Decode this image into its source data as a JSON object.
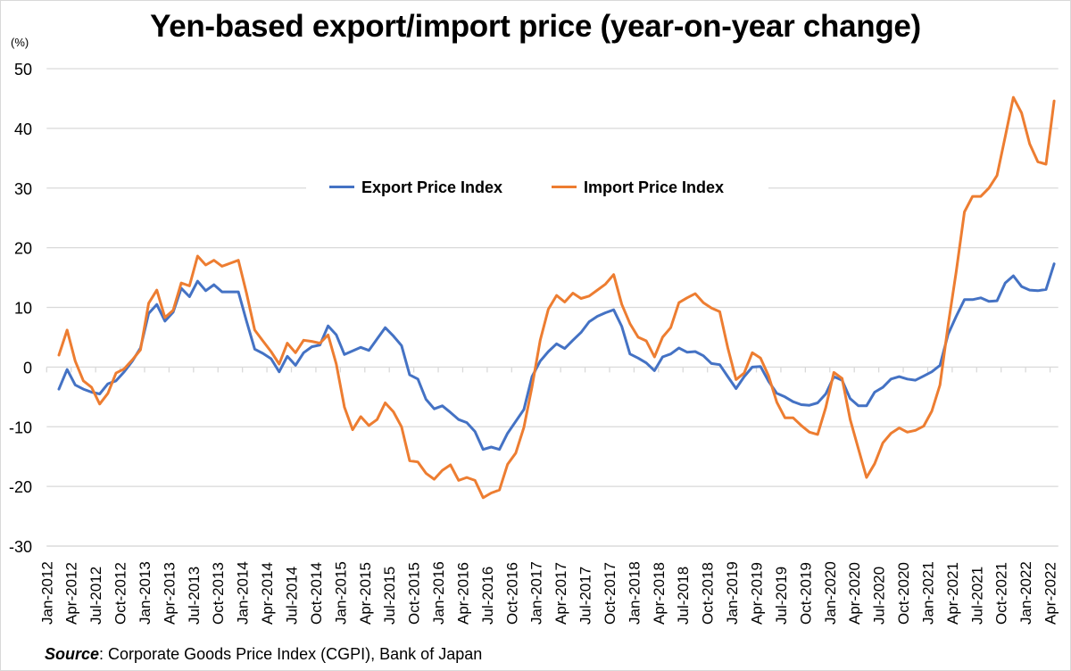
{
  "chart_data": {
    "type": "line",
    "title": "Yen-based export/import price (year-on-year change)",
    "ylabel": "(%)",
    "xlabel": "",
    "ylim": [
      -30,
      50
    ],
    "yticks": [
      50,
      40,
      30,
      20,
      10,
      0,
      -10,
      -20,
      -30
    ],
    "grid": true,
    "legend_position": "center-top",
    "x": [
      "Jan-2012",
      "Feb-2012",
      "Mar-2012",
      "Apr-2012",
      "May-2012",
      "Jun-2012",
      "Jul-2012",
      "Aug-2012",
      "Sep-2012",
      "Oct-2012",
      "Nov-2012",
      "Dec-2012",
      "Jan-2013",
      "Feb-2013",
      "Mar-2013",
      "Apr-2013",
      "May-2013",
      "Jun-2013",
      "Jul-2013",
      "Aug-2013",
      "Sep-2013",
      "Oct-2013",
      "Nov-2013",
      "Dec-2013",
      "Jan-2014",
      "Feb-2014",
      "Mar-2014",
      "Apr-2014",
      "May-2014",
      "Jun-2014",
      "Jul-2014",
      "Aug-2014",
      "Sep-2014",
      "Oct-2014",
      "Nov-2014",
      "Dec-2014",
      "Jan-2015",
      "Feb-2015",
      "Mar-2015",
      "Apr-2015",
      "May-2015",
      "Jun-2015",
      "Jul-2015",
      "Aug-2015",
      "Sep-2015",
      "Oct-2015",
      "Nov-2015",
      "Dec-2015",
      "Jan-2016",
      "Feb-2016",
      "Mar-2016",
      "Apr-2016",
      "May-2016",
      "Jun-2016",
      "Jul-2016",
      "Aug-2016",
      "Sep-2016",
      "Oct-2016",
      "Nov-2016",
      "Dec-2016",
      "Jan-2017",
      "Feb-2017",
      "Mar-2017",
      "Apr-2017",
      "May-2017",
      "Jun-2017",
      "Jul-2017",
      "Aug-2017",
      "Sep-2017",
      "Oct-2017",
      "Nov-2017",
      "Dec-2017",
      "Jan-2018",
      "Feb-2018",
      "Mar-2018",
      "Apr-2018",
      "May-2018",
      "Jun-2018",
      "Jul-2018",
      "Aug-2018",
      "Sep-2018",
      "Oct-2018",
      "Nov-2018",
      "Dec-2018",
      "Jan-2019",
      "Feb-2019",
      "Mar-2019",
      "Apr-2019",
      "May-2019",
      "Jun-2019",
      "Jul-2019",
      "Aug-2019",
      "Sep-2019",
      "Oct-2019",
      "Nov-2019",
      "Dec-2019",
      "Jan-2020",
      "Feb-2020",
      "Mar-2020",
      "Apr-2020",
      "May-2020",
      "Jun-2020",
      "Jul-2020",
      "Aug-2020",
      "Sep-2020",
      "Oct-2020",
      "Nov-2020",
      "Dec-2020",
      "Jan-2021",
      "Feb-2021",
      "Mar-2021",
      "Apr-2021",
      "May-2021",
      "Jun-2021",
      "Jul-2021",
      "Aug-2021",
      "Sep-2021",
      "Oct-2021",
      "Nov-2021",
      "Dec-2021",
      "Jan-2022",
      "Feb-2022",
      "Mar-2022",
      "Apr-2022"
    ],
    "xtick_labels": [
      "Jan-2012",
      "Apr-2012",
      "Jul-2012",
      "Oct-2012",
      "Jan-2013",
      "Apr-2013",
      "Jul-2013",
      "Oct-2013",
      "Jan-2014",
      "Apr-2014",
      "Jul-2014",
      "Oct-2014",
      "Jan-2015",
      "Apr-2015",
      "Jul-2015",
      "Oct-2015",
      "Jan-2016",
      "Apr-2016",
      "Jul-2016",
      "Oct-2016",
      "Jan-2017",
      "Apr-2017",
      "Jul-2017",
      "Oct-2017",
      "Jan-2018",
      "Apr-2018",
      "Jul-2018",
      "Oct-2018",
      "Jan-2019",
      "Apr-2019",
      "Jul-2019",
      "Oct-2019",
      "Jan-2020",
      "Apr-2020",
      "Jul-2020",
      "Oct-2020",
      "Jan-2021",
      "Apr-2021",
      "Jul-2021",
      "Oct-2021",
      "Jan-2022",
      "Apr-2022"
    ],
    "series": [
      {
        "name": "Export Price Index",
        "color": "#4472c4",
        "values": [
          null,
          -3.7,
          -0.4,
          -3.0,
          -3.7,
          -4.2,
          -4.5,
          -2.8,
          -2.3,
          -0.8,
          1.0,
          3.2,
          9.0,
          10.5,
          7.7,
          9.2,
          13.2,
          11.8,
          14.4,
          12.8,
          13.8,
          12.6,
          12.6,
          12.6,
          7.7,
          3.0,
          2.3,
          1.4,
          -0.8,
          1.8,
          0.3,
          2.4,
          3.4,
          3.7,
          6.9,
          5.4,
          2.1,
          2.7,
          3.3,
          2.8,
          4.7,
          6.6,
          5.2,
          3.6,
          -1.3,
          -2.0,
          -5.4,
          -7.0,
          -6.5,
          -7.6,
          -8.8,
          -9.3,
          -10.8,
          -13.8,
          -13.4,
          -13.8,
          -11.1,
          -9.1,
          -7.1,
          -1.6,
          1.0,
          2.6,
          3.9,
          3.1,
          4.5,
          5.8,
          7.6,
          8.5,
          9.1,
          9.6,
          6.8,
          2.2,
          1.5,
          0.7,
          -0.6,
          1.7,
          2.2,
          3.2,
          2.5,
          2.6,
          1.9,
          0.6,
          0.4,
          -1.6,
          -3.6,
          -1.6,
          0.0,
          0.1,
          -2.4,
          -4.4,
          -5.0,
          -5.8,
          -6.3,
          -6.4,
          -6.0,
          -4.5,
          -1.6,
          -2.2,
          -5.3,
          -6.5,
          -6.5,
          -4.2,
          -3.4,
          -2.0,
          -1.6,
          -2.0,
          -2.2,
          -1.5,
          -0.8,
          0.3,
          5.5,
          8.5,
          11.3,
          11.3,
          11.6,
          11.0,
          11.1,
          14.1,
          15.3,
          13.5,
          12.9,
          12.8,
          13.0,
          17.3
        ]
      },
      {
        "name": "Import Price Index",
        "color": "#ed7d31",
        "values": [
          null,
          2.0,
          6.2,
          1.0,
          -2.3,
          -3.4,
          -6.2,
          -4.4,
          -1.0,
          -0.3,
          1.2,
          2.9,
          10.7,
          12.9,
          8.3,
          9.5,
          14.1,
          13.6,
          18.6,
          17.1,
          17.9,
          16.9,
          17.4,
          17.9,
          12.4,
          6.2,
          4.4,
          2.6,
          0.5,
          4.0,
          2.4,
          4.5,
          4.3,
          4.0,
          5.4,
          0.5,
          -6.7,
          -10.5,
          -8.3,
          -9.8,
          -8.8,
          -6.0,
          -7.5,
          -10.0,
          -15.7,
          -15.9,
          -17.8,
          -18.8,
          -17.3,
          -16.4,
          -19.0,
          -18.5,
          -19.0,
          -21.9,
          -21.1,
          -20.6,
          -16.3,
          -14.4,
          -10.1,
          -3.3,
          4.5,
          9.7,
          12.0,
          10.9,
          12.4,
          11.5,
          11.9,
          12.9,
          13.9,
          15.5,
          10.5,
          7.3,
          5.0,
          4.4,
          1.7,
          5.0,
          6.6,
          10.8,
          11.6,
          12.3,
          10.8,
          9.9,
          9.3,
          3.2,
          -2.1,
          -1.0,
          2.4,
          1.5,
          -1.5,
          -5.9,
          -8.5,
          -8.5,
          -9.8,
          -10.9,
          -11.3,
          -6.8,
          -0.9,
          -1.9,
          -8.8,
          -13.7,
          -18.5,
          -16.2,
          -12.7,
          -11.1,
          -10.2,
          -10.9,
          -10.6,
          -9.9,
          -7.4,
          -3.0,
          7.0,
          16.0,
          26.0,
          28.6,
          28.6,
          30.0,
          32.1,
          38.6,
          45.2,
          42.6,
          37.4,
          34.4,
          34.0,
          44.6
        ]
      }
    ]
  },
  "page": {
    "title": "Yen-based export/import price (year-on-year change)",
    "unit_label": "(%)",
    "source_label": "Source",
    "source_text": ": Corporate Goods Price Index (CGPI), Bank of Japan",
    "legend": [
      {
        "label": "Export Price Index",
        "color": "#4472c4"
      },
      {
        "label": "Import Price Index",
        "color": "#ed7d31"
      }
    ]
  }
}
